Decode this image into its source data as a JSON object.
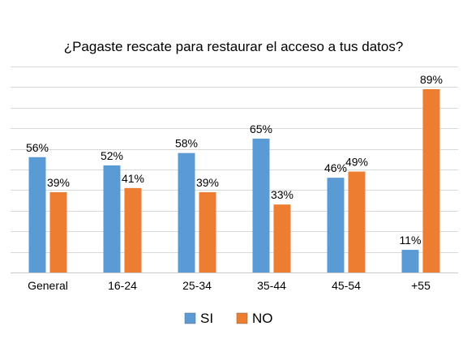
{
  "chart_data": {
    "type": "bar",
    "title": "¿Pagaste rescate para restaurar el acceso a tus datos?",
    "categories": [
      "General",
      "16-24",
      "25-34",
      "35-44",
      "45-54",
      "+55"
    ],
    "series": [
      {
        "name": "SI",
        "color": "#5B9BD5",
        "values": [
          56,
          52,
          58,
          65,
          46,
          11
        ]
      },
      {
        "name": "NO",
        "color": "#ED7D31",
        "values": [
          39,
          41,
          39,
          33,
          49,
          89
        ]
      }
    ],
    "value_suffix": "%",
    "ylim": [
      0,
      100
    ],
    "grid": true,
    "legend": "bottom"
  }
}
